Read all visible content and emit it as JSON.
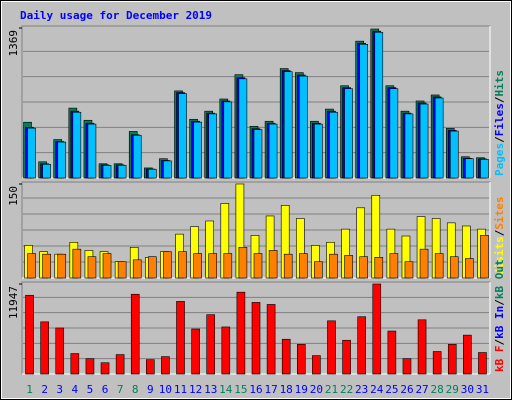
{
  "title": "Daily usage for December 2019",
  "categories": [
    "1",
    "2",
    "3",
    "4",
    "5",
    "6",
    "7",
    "8",
    "9",
    "10",
    "11",
    "12",
    "13",
    "14",
    "15",
    "16",
    "17",
    "18",
    "19",
    "20",
    "21",
    "22",
    "23",
    "24",
    "25",
    "26",
    "27",
    "28",
    "29",
    "30",
    "31"
  ],
  "category_colors": [
    "#00805c",
    "#0000ff",
    "#0000ff",
    "#0000ff",
    "#0000ff",
    "#0000ff",
    "#00805c",
    "#00805c",
    "#0000ff",
    "#0000ff",
    "#0000ff",
    "#0000ff",
    "#0000ff",
    "#00805c",
    "#00805c",
    "#0000ff",
    "#0000ff",
    "#0000ff",
    "#0000ff",
    "#0000ff",
    "#00805c",
    "#00805c",
    "#0000ff",
    "#0000ff",
    "#0000ff",
    "#0000ff",
    "#0000ff",
    "#00805c",
    "#00805c",
    "#0000ff",
    "#0000ff"
  ],
  "legend_separator": "/",
  "chart_data": [
    {
      "type": "bar",
      "ylim": [
        0,
        1369
      ],
      "yticks": [
        1369
      ],
      "series": [
        {
          "name": "Hits",
          "color": "#00805c",
          "values": [
            509,
            148,
            351,
            638,
            527,
            130,
            130,
            425,
            92,
            176,
            795,
            536,
            610,
            721,
            943,
            472,
            518,
            999,
            962,
            518,
            629,
            842,
            1249,
            1360,
            842,
            610,
            703,
            758,
            453,
            194,
            185
          ]
        },
        {
          "name": "Files",
          "color": "#0000ff",
          "values": [
            462,
            130,
            333,
            610,
            500,
            120,
            120,
            395,
            82,
            160,
            780,
            518,
            592,
            703,
            915,
            450,
            500,
            980,
            940,
            500,
            610,
            825,
            1230,
            1340,
            825,
            592,
            685,
            740,
            435,
            180,
            175
          ]
        },
        {
          "name": "Pages",
          "color": "#00c0ff",
          "values": [
            455,
            125,
            328,
            600,
            492,
            115,
            116,
            390,
            80,
            156,
            770,
            510,
            585,
            695,
            905,
            442,
            492,
            970,
            930,
            492,
            600,
            815,
            1220,
            1330,
            815,
            585,
            675,
            730,
            428,
            176,
            170
          ]
        }
      ]
    },
    {
      "type": "bar",
      "ylim": [
        0,
        150
      ],
      "yticks": [
        150
      ],
      "series": [
        {
          "name": "Visits",
          "color": "#ffff00",
          "values": [
            52,
            42,
            38,
            57,
            44,
            42,
            26,
            49,
            33,
            42,
            70,
            82,
            91,
            119,
            150,
            68,
            99,
            116,
            95,
            52,
            57,
            78,
            112,
            132,
            78,
            67,
            98,
            95,
            88,
            83,
            78
          ]
        },
        {
          "name": "Sites",
          "color": "#ff8000",
          "values": [
            39,
            38,
            38,
            46,
            34,
            39,
            26,
            29,
            34,
            42,
            42,
            39,
            39,
            39,
            49,
            39,
            44,
            38,
            39,
            26,
            38,
            36,
            34,
            33,
            39,
            26,
            46,
            39,
            34,
            31,
            68
          ]
        }
      ]
    },
    {
      "type": "bar",
      "ylim": [
        0,
        11947
      ],
      "yticks": [
        11947
      ],
      "series": [
        {
          "name": "kB F",
          "color": "#ff0000",
          "values": [
            10453,
            6924,
            6109,
            2715,
            2036,
            1493,
            2579,
            10589,
            1901,
            2308,
            9639,
            5973,
            7874,
            6245,
            10861,
            9503,
            9232,
            4616,
            3937,
            2444,
            7060,
            4480,
            7603,
            11947,
            5702,
            2036,
            7195,
            2987,
            3937,
            5159,
            2851
          ]
        }
      ],
      "extra_legend": [
        {
          "name": "kB In",
          "color": "#0000ff"
        },
        {
          "name": "kB Out",
          "color": "#00805c"
        }
      ]
    }
  ]
}
